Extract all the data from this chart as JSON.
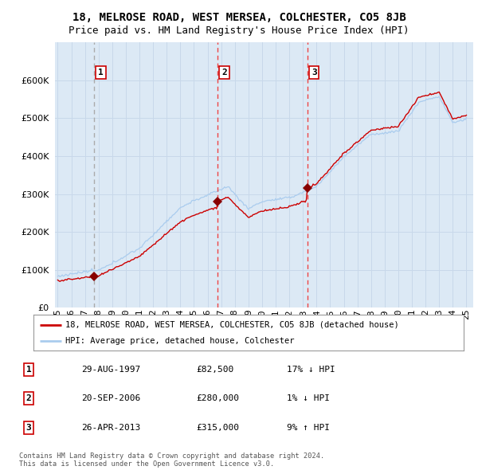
{
  "title": "18, MELROSE ROAD, WEST MERSEA, COLCHESTER, CO5 8JB",
  "subtitle": "Price paid vs. HM Land Registry's House Price Index (HPI)",
  "ylim": [
    0,
    700000
  ],
  "yticks": [
    0,
    100000,
    200000,
    300000,
    400000,
    500000,
    600000
  ],
  "ytick_labels": [
    "£0",
    "£100K",
    "£200K",
    "£300K",
    "£400K",
    "£500K",
    "£600K"
  ],
  "background_color": "#dce9f5",
  "grid_color": "#c8d8ea",
  "sale_color": "#cc0000",
  "hpi_color": "#aaccee",
  "marker_color": "#880000",
  "dashed_sale_color": "#ee4444",
  "dashed_pre_color": "#aaaaaa",
  "sales": [
    {
      "year": 1997.66,
      "price": 82500,
      "label": "1",
      "pre_sale": true
    },
    {
      "year": 2006.72,
      "price": 280000,
      "label": "2",
      "pre_sale": false
    },
    {
      "year": 2013.32,
      "price": 315000,
      "label": "3",
      "pre_sale": false
    }
  ],
  "legend_sale_label": "18, MELROSE ROAD, WEST MERSEA, COLCHESTER, CO5 8JB (detached house)",
  "legend_hpi_label": "HPI: Average price, detached house, Colchester",
  "table_rows": [
    {
      "num": "1",
      "date": "29-AUG-1997",
      "price": "£82,500",
      "hpi": "17% ↓ HPI"
    },
    {
      "num": "2",
      "date": "20-SEP-2006",
      "price": "£280,000",
      "hpi": "1% ↓ HPI"
    },
    {
      "num": "3",
      "date": "26-APR-2013",
      "price": "£315,000",
      "hpi": "9% ↑ HPI"
    }
  ],
  "footnote": "Contains HM Land Registry data © Crown copyright and database right 2024.\nThis data is licensed under the Open Government Licence v3.0.",
  "title_fontsize": 10,
  "subtitle_fontsize": 9,
  "tick_fontsize": 8
}
